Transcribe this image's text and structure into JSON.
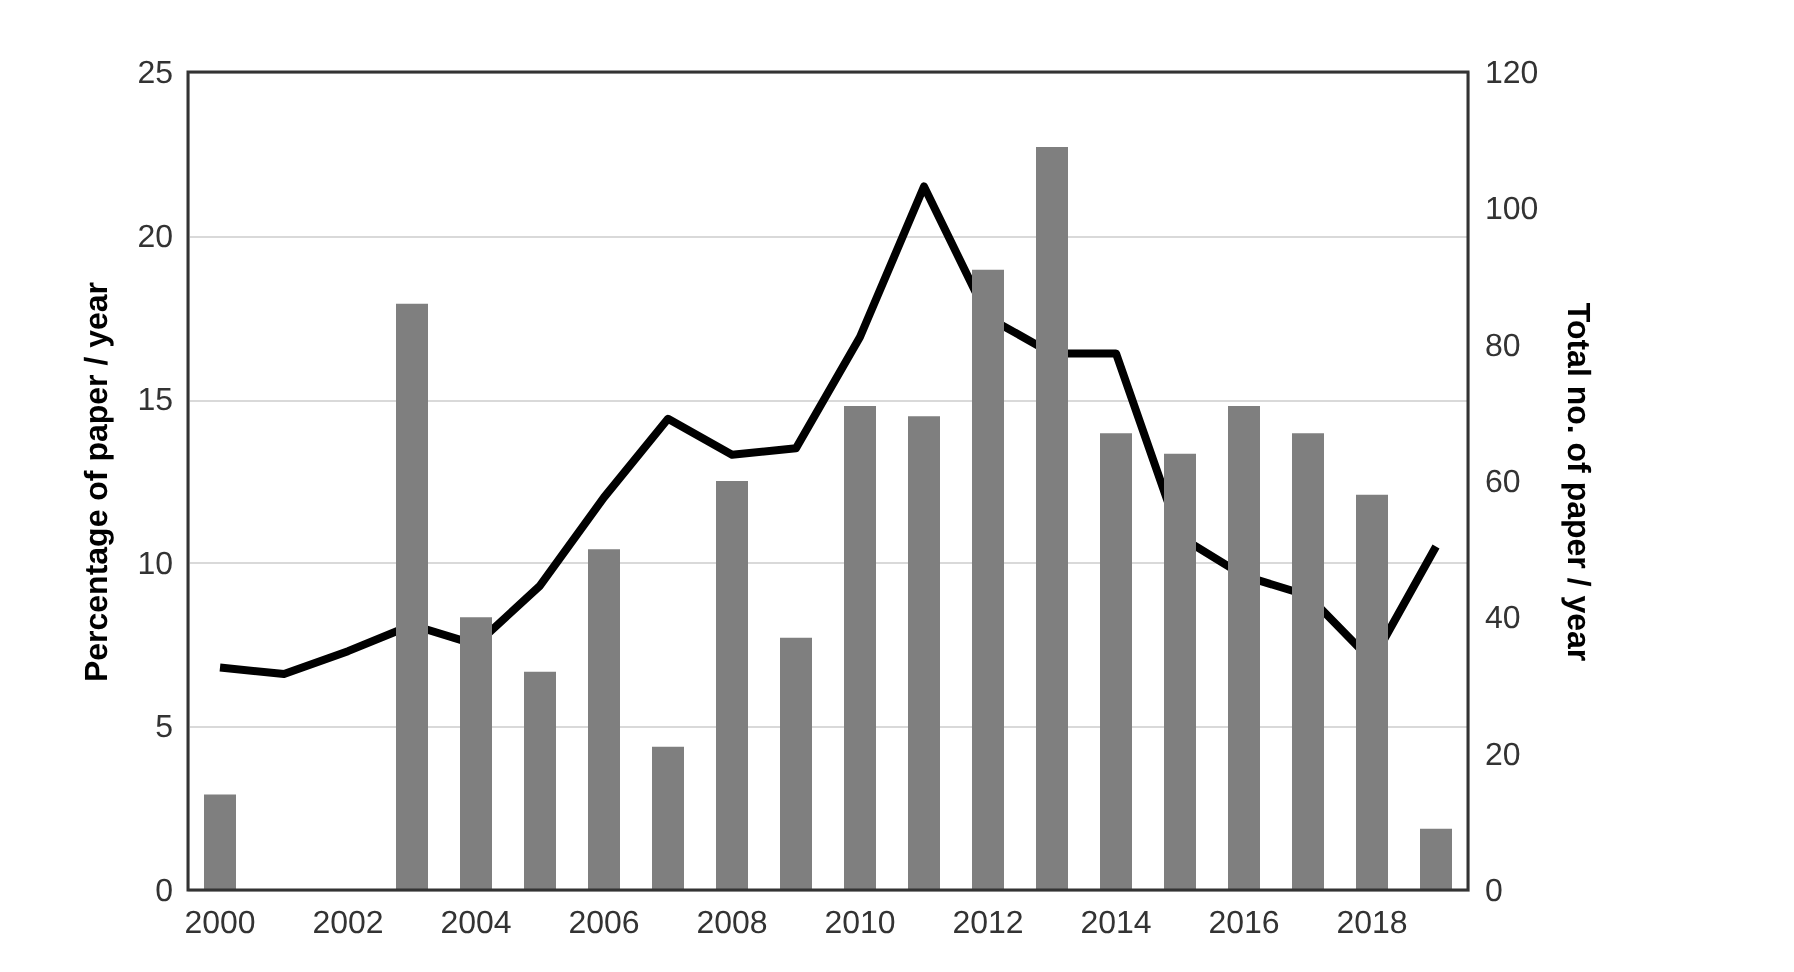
{
  "chart_data": {
    "type": "bar",
    "xlabel": null,
    "ylabel": "Percentage of paper / year",
    "y2label": "Total no. of paper / year",
    "categories": [
      "2000",
      null,
      "2002",
      null,
      "2004",
      null,
      "2006",
      null,
      "2008",
      null,
      "2010",
      null,
      "2012",
      null,
      "2014",
      null,
      "2016",
      null,
      "2018",
      null
    ],
    "series": [
      {
        "axis": "y2",
        "color": "#7f7f7f",
        "values": [
          14,
          0,
          0,
          86,
          40,
          32,
          50,
          21,
          60,
          37,
          71,
          69.5,
          91,
          109,
          67,
          64,
          71,
          67,
          58,
          9
        ]
      },
      {
        "type": "line",
        "axis": "y",
        "color": "#000000",
        "values": [
          6.8,
          6.6,
          7.3,
          8.1,
          7.5,
          9.3,
          12.0,
          14.4,
          13.3,
          13.5,
          16.9,
          21.5,
          17.5,
          16.4,
          16.4,
          10.8,
          9.6,
          9.0,
          7.0,
          10.5
        ]
      }
    ],
    "ylim": [
      0,
      25
    ],
    "yticks": [
      0,
      5,
      10,
      15,
      20,
      25
    ],
    "y2lim": [
      0,
      120
    ],
    "y2ticks": [
      0,
      20,
      40,
      60,
      80,
      100,
      120
    ],
    "grid": "y",
    "legend": false,
    "marker": "none",
    "line_style": "solid"
  }
}
